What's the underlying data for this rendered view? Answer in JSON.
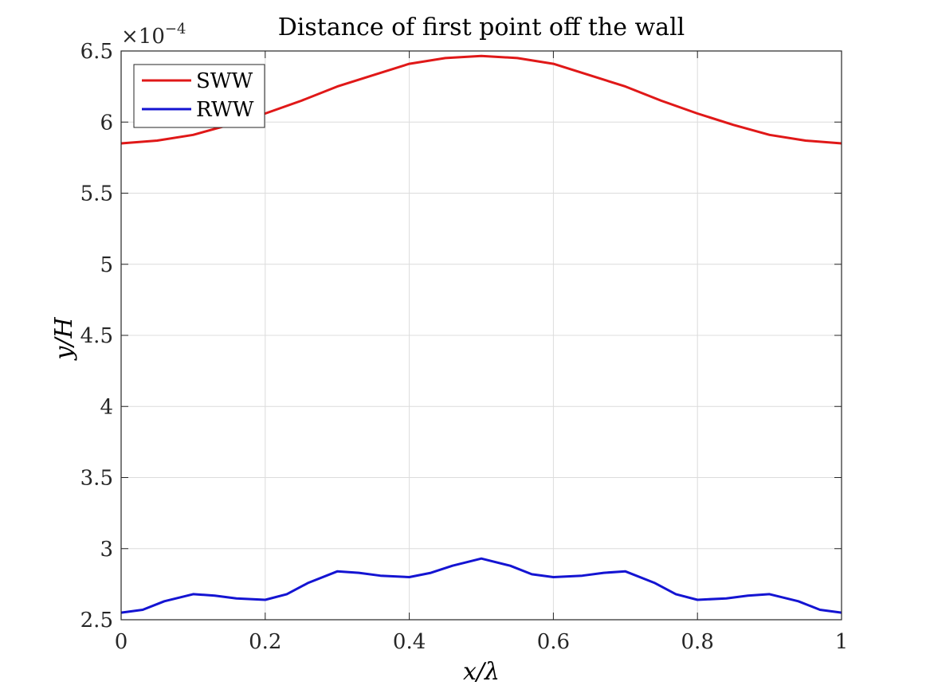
{
  "chart_data": {
    "type": "line",
    "title": "Distance of first point off the wall",
    "xlabel": "x/λ",
    "ylabel": "y/H",
    "exponent_label": "×10",
    "exponent_power": "−4",
    "xlim": [
      0,
      1
    ],
    "ylim": [
      2.5,
      6.5
    ],
    "xticks": [
      0,
      0.2,
      0.4,
      0.6,
      0.8,
      1
    ],
    "xtick_labels": [
      "0",
      "0.2",
      "0.4",
      "0.6",
      "0.8",
      "1"
    ],
    "yticks": [
      2.5,
      3,
      3.5,
      4,
      4.5,
      5,
      5.5,
      6,
      6.5
    ],
    "ytick_labels": [
      "2.5",
      "3",
      "3.5",
      "4",
      "4.5",
      "5",
      "5.5",
      "6",
      "6.5"
    ],
    "grid": true,
    "legend_position": "top-left",
    "series": [
      {
        "name": "SWW",
        "color": "#e01818",
        "x": [
          0,
          0.05,
          0.1,
          0.15,
          0.2,
          0.25,
          0.3,
          0.35,
          0.4,
          0.45,
          0.5,
          0.55,
          0.6,
          0.65,
          0.7,
          0.75,
          0.8,
          0.85,
          0.9,
          0.95,
          1.0
        ],
        "y": [
          5.85,
          5.87,
          5.91,
          5.98,
          6.06,
          6.15,
          6.25,
          6.33,
          6.41,
          6.45,
          6.465,
          6.45,
          6.41,
          6.33,
          6.25,
          6.15,
          6.06,
          5.98,
          5.91,
          5.87,
          5.85
        ]
      },
      {
        "name": "RWW",
        "color": "#1414d2",
        "x": [
          0,
          0.03,
          0.06,
          0.1,
          0.13,
          0.16,
          0.2,
          0.23,
          0.26,
          0.3,
          0.33,
          0.36,
          0.4,
          0.43,
          0.46,
          0.5,
          0.54,
          0.57,
          0.6,
          0.64,
          0.67,
          0.7,
          0.74,
          0.77,
          0.8,
          0.84,
          0.87,
          0.9,
          0.94,
          0.97,
          1.0
        ],
        "y": [
          2.55,
          2.57,
          2.63,
          2.68,
          2.67,
          2.65,
          2.64,
          2.68,
          2.76,
          2.84,
          2.83,
          2.81,
          2.8,
          2.83,
          2.88,
          2.93,
          2.88,
          2.82,
          2.8,
          2.81,
          2.83,
          2.84,
          2.76,
          2.68,
          2.64,
          2.65,
          2.67,
          2.68,
          2.63,
          2.57,
          2.55
        ]
      }
    ]
  }
}
